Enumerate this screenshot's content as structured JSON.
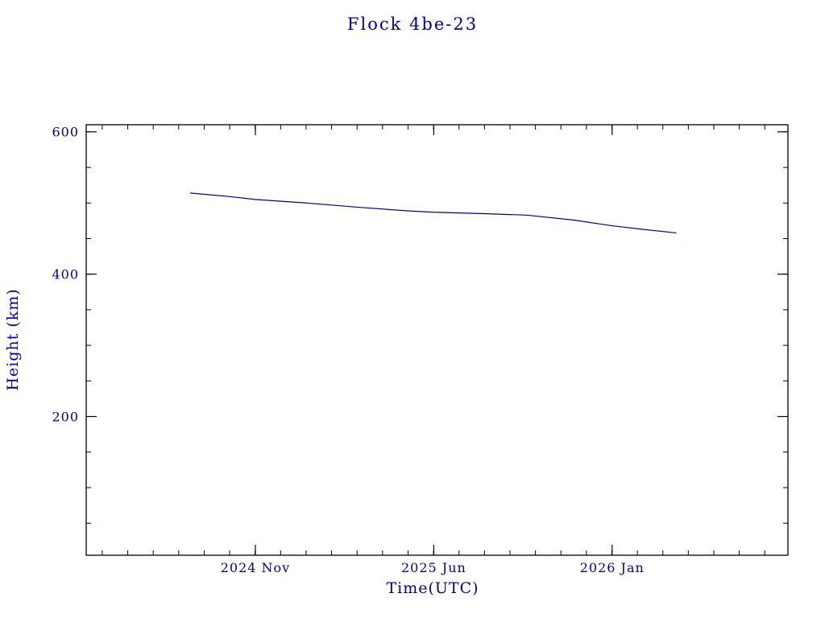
{
  "chart_data": {
    "type": "line",
    "title": "Flock 4be-23",
    "xlabel": "Time(UTC)",
    "ylabel": "Height (km)",
    "xlim": [
      2024.28,
      2026.575
    ],
    "ylim": [
      5,
      610
    ],
    "grid": false,
    "legend": "none",
    "axis_color": "#000000",
    "text_color": "#00009b",
    "line_color": "#00009b",
    "x_ticks": [
      {
        "value": 2024.8333,
        "label": "2024 Nov"
      },
      {
        "value": 2025.4167,
        "label": "2025 Jun"
      },
      {
        "value": 2026.0,
        "label": "2026 Jan"
      }
    ],
    "y_ticks": [
      {
        "value": 600,
        "label": "600"
      },
      {
        "value": 400,
        "label": "400"
      },
      {
        "value": 200,
        "label": "200"
      }
    ],
    "x_minor_step": 0.0833333,
    "y_minor_step": 50,
    "series": [
      {
        "name": "Flock 4be-23 height",
        "points": [
          [
            2024.62,
            514
          ],
          [
            2024.75,
            509
          ],
          [
            2024.8333,
            505
          ],
          [
            2025.0,
            500
          ],
          [
            2025.17,
            494
          ],
          [
            2025.33,
            489
          ],
          [
            2025.4167,
            487
          ],
          [
            2025.58,
            485
          ],
          [
            2025.72,
            483
          ],
          [
            2025.875,
            476
          ],
          [
            2026.0,
            468
          ],
          [
            2026.1,
            463
          ],
          [
            2026.21,
            458
          ]
        ]
      }
    ]
  }
}
